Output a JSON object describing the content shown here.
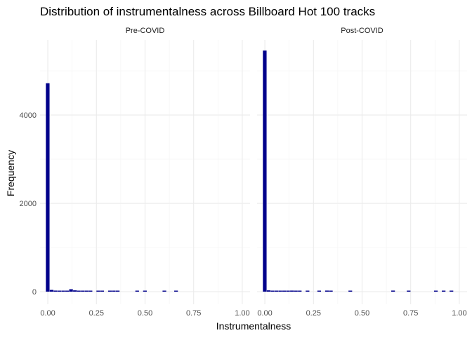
{
  "chart_data": {
    "type": "bar",
    "title": "Distribution of instrumentalness across Billboard Hot 100 tracks",
    "xlabel": "Instrumentalness",
    "ylabel": "Frequency",
    "xlim": [
      0,
      1
    ],
    "ylim": [
      0,
      5700
    ],
    "x_ticks": [
      "0.00",
      "0.25",
      "0.50",
      "0.75",
      "1.00"
    ],
    "y_ticks": [
      "0",
      "2000",
      "4000"
    ],
    "x_tick_values": [
      0,
      0.25,
      0.5,
      0.75,
      1.0
    ],
    "y_tick_values": [
      0,
      2000,
      4000
    ],
    "bin_width": 0.02,
    "grid": true,
    "bar_color": "#00008B",
    "panels": [
      {
        "label": "Pre-COVID",
        "bins": [
          {
            "x": 0.0,
            "count": 4720
          },
          {
            "x": 0.02,
            "count": 40
          },
          {
            "x": 0.04,
            "count": 25
          },
          {
            "x": 0.06,
            "count": 8
          },
          {
            "x": 0.08,
            "count": 10
          },
          {
            "x": 0.1,
            "count": 6
          },
          {
            "x": 0.12,
            "count": 55
          },
          {
            "x": 0.14,
            "count": 30
          },
          {
            "x": 0.16,
            "count": 15
          },
          {
            "x": 0.18,
            "count": 6
          },
          {
            "x": 0.2,
            "count": 10
          },
          {
            "x": 0.22,
            "count": 8
          },
          {
            "x": 0.26,
            "count": 8
          },
          {
            "x": 0.28,
            "count": 6
          },
          {
            "x": 0.32,
            "count": 8
          },
          {
            "x": 0.34,
            "count": 10
          },
          {
            "x": 0.36,
            "count": 8
          },
          {
            "x": 0.46,
            "count": 8
          },
          {
            "x": 0.5,
            "count": 8
          },
          {
            "x": 0.6,
            "count": 10
          },
          {
            "x": 0.66,
            "count": 12
          }
        ]
      },
      {
        "label": "Post-COVID",
        "bins": [
          {
            "x": 0.0,
            "count": 5460
          },
          {
            "x": 0.02,
            "count": 30
          },
          {
            "x": 0.04,
            "count": 10
          },
          {
            "x": 0.06,
            "count": 8
          },
          {
            "x": 0.08,
            "count": 8
          },
          {
            "x": 0.1,
            "count": 6
          },
          {
            "x": 0.12,
            "count": 8
          },
          {
            "x": 0.14,
            "count": 25
          },
          {
            "x": 0.16,
            "count": 12
          },
          {
            "x": 0.18,
            "count": 6
          },
          {
            "x": 0.22,
            "count": 8
          },
          {
            "x": 0.28,
            "count": 8
          },
          {
            "x": 0.32,
            "count": 25
          },
          {
            "x": 0.34,
            "count": 10
          },
          {
            "x": 0.44,
            "count": 8
          },
          {
            "x": 0.66,
            "count": 25
          },
          {
            "x": 0.74,
            "count": 8
          },
          {
            "x": 0.88,
            "count": 8
          },
          {
            "x": 0.92,
            "count": 8
          },
          {
            "x": 0.96,
            "count": 8
          }
        ]
      }
    ]
  }
}
